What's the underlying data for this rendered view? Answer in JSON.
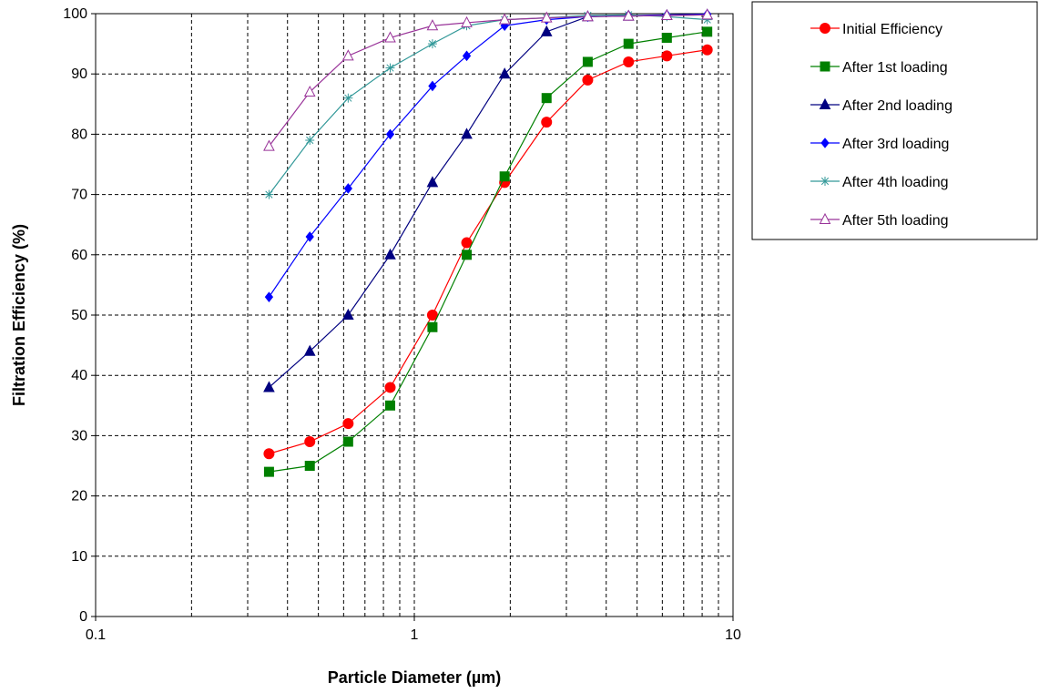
{
  "chart_data": {
    "type": "line",
    "title": "",
    "xlabel": "Particle Diameter (µm)",
    "ylabel": "Filtration Efficiency (%)",
    "x_scale": "log",
    "xlim": [
      0.1,
      10
    ],
    "ylim": [
      0,
      100
    ],
    "x_tick_labels": [
      "0.1",
      "1",
      "10"
    ],
    "y_tick_labels": [
      "0",
      "10",
      "20",
      "30",
      "40",
      "50",
      "60",
      "70",
      "80",
      "90",
      "100"
    ],
    "grid": true,
    "legend_position": "top-right, outside plot area",
    "x": [
      0.35,
      0.47,
      0.62,
      0.84,
      1.14,
      1.46,
      1.92,
      2.6,
      3.5,
      4.7,
      6.2,
      8.3
    ],
    "series": [
      {
        "name": "Initial Efficiency",
        "color": "#ff0000",
        "line_color": "#ff0000",
        "marker": "circle",
        "values": [
          27,
          29,
          32,
          38,
          50,
          62,
          72,
          82,
          89,
          92,
          93,
          94
        ]
      },
      {
        "name": "After 1st loading",
        "color": "#008000",
        "line_color": "#008000",
        "marker": "square",
        "values": [
          24,
          25,
          29,
          35,
          48,
          60,
          73,
          86,
          92,
          95,
          96,
          97
        ]
      },
      {
        "name": "After 2nd loading",
        "color": "#000080",
        "line_color": "#000080",
        "marker": "triangle",
        "values": [
          38,
          44,
          50,
          60,
          72,
          80,
          90,
          97,
          99.5,
          99.6,
          99.7,
          99.8
        ]
      },
      {
        "name": "After 3rd loading",
        "color": "#0000ff",
        "line_color": "#0000ff",
        "marker": "diamond",
        "values": [
          53,
          63,
          71,
          80,
          88,
          93,
          98,
          99,
          99.5,
          99.7,
          99.8,
          99.9
        ]
      },
      {
        "name": "After 4th loading",
        "color": "#339999",
        "line_color": "#339999",
        "marker": "star",
        "values": [
          70,
          79,
          86,
          91,
          95,
          98,
          99,
          99.3,
          99.7,
          99.8,
          99.5,
          99
        ]
      },
      {
        "name": "After 5th loading",
        "color": "#993399",
        "line_color": "#993399",
        "marker": "triangle-open",
        "values": [
          78,
          87,
          93,
          96,
          98,
          98.5,
          99,
          99.3,
          99.5,
          99.6,
          99.7,
          99.8
        ]
      }
    ]
  }
}
